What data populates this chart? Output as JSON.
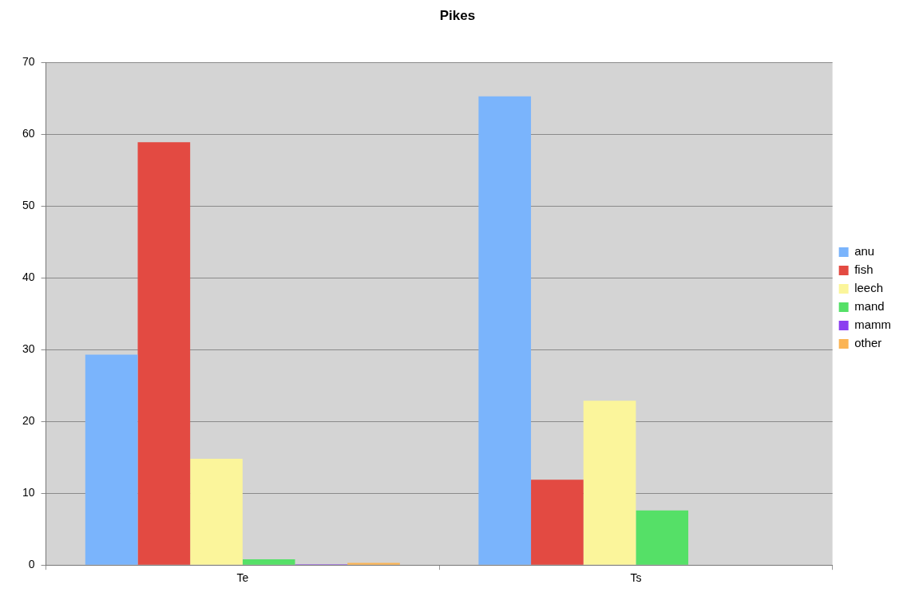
{
  "chart_data": {
    "type": "bar",
    "title": "Pikes",
    "categories": [
      "Te",
      "Ts"
    ],
    "series": [
      {
        "name": "anu",
        "color": "#7ab4fc",
        "values": [
          29.3,
          65.3
        ]
      },
      {
        "name": "fish",
        "color": "#e34a42",
        "values": [
          58.9,
          11.9
        ]
      },
      {
        "name": "leech",
        "color": "#fbf59b",
        "values": [
          14.8,
          22.9
        ]
      },
      {
        "name": "mand",
        "color": "#55e067",
        "values": [
          0.8,
          7.6
        ]
      },
      {
        "name": "mamm",
        "color": "#8b3ff0",
        "values": [
          0.1,
          0
        ]
      },
      {
        "name": "other",
        "color": "#fbb454",
        "values": [
          0.3,
          0
        ]
      }
    ],
    "ylim": [
      0,
      70
    ],
    "yticks": [
      0,
      10,
      20,
      30,
      40,
      50,
      60,
      70
    ],
    "grid": "y",
    "legend": "right"
  }
}
